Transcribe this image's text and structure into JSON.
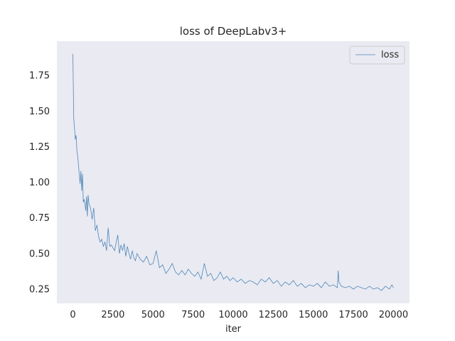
{
  "chart_data": {
    "type": "line",
    "title": "loss of DeepLabv3+",
    "xlabel": "iter",
    "ylabel": "",
    "xlim": [
      -1000,
      21000
    ],
    "ylim": [
      0.15,
      1.99
    ],
    "xticks": [
      0,
      2500,
      5000,
      7500,
      10000,
      12500,
      15000,
      17500,
      20000
    ],
    "yticks": [
      0.25,
      0.5,
      0.75,
      1.0,
      1.25,
      1.5,
      1.75
    ],
    "ytick_labels": [
      "0.25",
      "0.50",
      "0.75",
      "1.00",
      "1.25",
      "1.50",
      "1.75"
    ],
    "grid": false,
    "legend_position": "top-right",
    "colors": {
      "series": "#4c87b9",
      "background": "#eaeaf2"
    },
    "series": [
      {
        "name": "loss",
        "x": [
          0,
          50,
          100,
          150,
          200,
          250,
          300,
          350,
          400,
          450,
          500,
          550,
          600,
          650,
          700,
          750,
          800,
          850,
          900,
          950,
          1000,
          1100,
          1200,
          1300,
          1400,
          1500,
          1600,
          1700,
          1800,
          1900,
          2000,
          2100,
          2200,
          2300,
          2400,
          2500,
          2600,
          2700,
          2800,
          2900,
          3000,
          3100,
          3200,
          3300,
          3400,
          3500,
          3600,
          3700,
          3800,
          3900,
          4000,
          4200,
          4400,
          4600,
          4800,
          5000,
          5200,
          5400,
          5600,
          5800,
          6000,
          6200,
          6400,
          6600,
          6800,
          7000,
          7200,
          7400,
          7600,
          7800,
          8000,
          8200,
          8400,
          8600,
          8800,
          9000,
          9200,
          9400,
          9600,
          9800,
          10000,
          10250,
          10500,
          10750,
          11000,
          11250,
          11500,
          11750,
          12000,
          12250,
          12500,
          12750,
          13000,
          13250,
          13500,
          13750,
          14000,
          14250,
          14500,
          14750,
          15000,
          15250,
          15500,
          15750,
          16000,
          16250,
          16500,
          16550,
          16600,
          16750,
          17000,
          17250,
          17500,
          17750,
          18000,
          18250,
          18500,
          18750,
          19000,
          19250,
          19500,
          19750,
          19900,
          20000
        ],
        "y": [
          1.9,
          1.45,
          1.38,
          1.3,
          1.33,
          1.22,
          1.18,
          1.12,
          1.05,
          0.99,
          1.08,
          0.94,
          1.06,
          0.86,
          0.88,
          0.85,
          0.8,
          0.9,
          0.76,
          0.91,
          0.85,
          0.82,
          0.74,
          0.82,
          0.66,
          0.7,
          0.62,
          0.58,
          0.6,
          0.55,
          0.58,
          0.52,
          0.68,
          0.55,
          0.56,
          0.54,
          0.52,
          0.58,
          0.63,
          0.5,
          0.56,
          0.52,
          0.57,
          0.48,
          0.55,
          0.5,
          0.46,
          0.52,
          0.47,
          0.45,
          0.5,
          0.46,
          0.44,
          0.48,
          0.42,
          0.43,
          0.52,
          0.4,
          0.42,
          0.36,
          0.39,
          0.43,
          0.37,
          0.35,
          0.38,
          0.35,
          0.39,
          0.36,
          0.34,
          0.37,
          0.32,
          0.43,
          0.34,
          0.36,
          0.31,
          0.33,
          0.37,
          0.32,
          0.34,
          0.31,
          0.33,
          0.3,
          0.32,
          0.29,
          0.31,
          0.3,
          0.28,
          0.32,
          0.3,
          0.33,
          0.29,
          0.31,
          0.27,
          0.3,
          0.28,
          0.31,
          0.27,
          0.29,
          0.26,
          0.28,
          0.27,
          0.29,
          0.26,
          0.3,
          0.27,
          0.28,
          0.26,
          0.38,
          0.3,
          0.27,
          0.26,
          0.27,
          0.25,
          0.27,
          0.26,
          0.25,
          0.27,
          0.25,
          0.26,
          0.24,
          0.27,
          0.25,
          0.28,
          0.26
        ]
      }
    ]
  }
}
